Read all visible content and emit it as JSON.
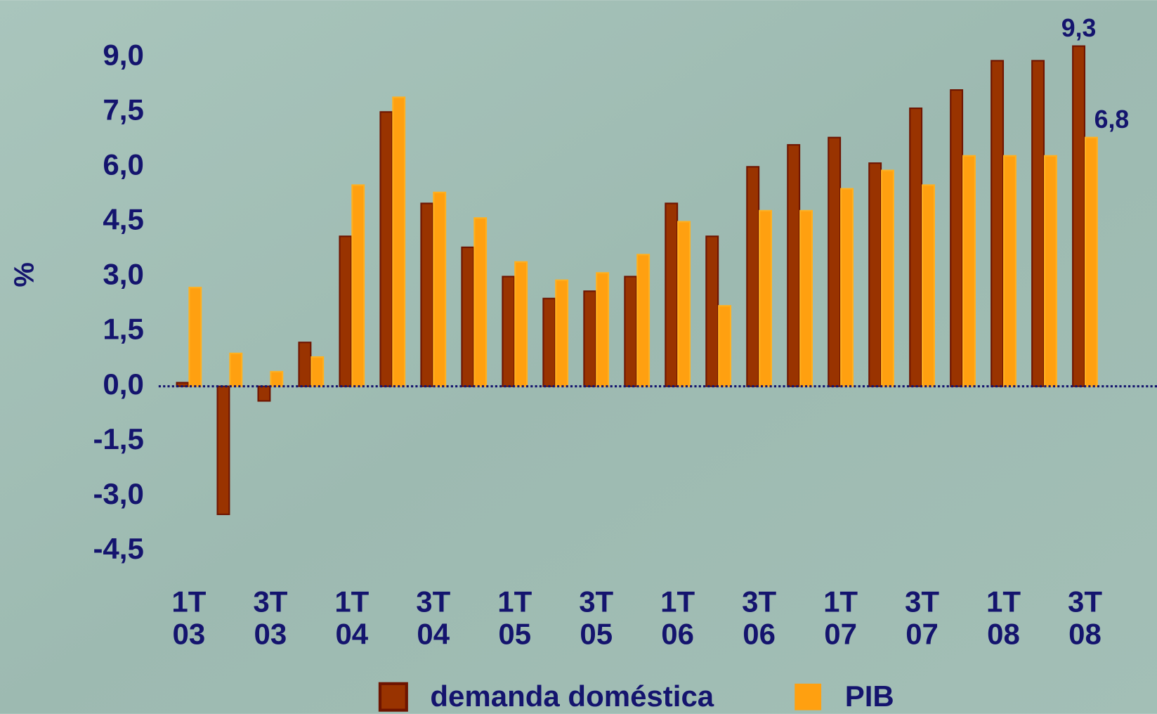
{
  "chart_data": {
    "type": "bar",
    "y_label": "%",
    "categories": [
      "1T 03",
      null,
      "3T 03",
      null,
      "1T 04",
      null,
      "3T 04",
      null,
      "1T 05",
      null,
      "3T 05",
      null,
      "1T 06",
      null,
      "3T 06",
      null,
      "1T 07",
      null,
      "3T 07",
      null,
      "1T 08",
      null,
      "3T 08"
    ],
    "series": [
      {
        "name": "demanda doméstica",
        "color": "#993300",
        "values": [
          0.1,
          -3.5,
          -0.4,
          1.2,
          4.1,
          7.5,
          5.0,
          3.8,
          3.0,
          2.4,
          2.6,
          3.0,
          5.0,
          4.1,
          6.0,
          6.6,
          6.8,
          6.1,
          7.6,
          8.1,
          8.9,
          8.9,
          9.3
        ],
        "value_labels": [
          null,
          null,
          null,
          null,
          null,
          null,
          null,
          null,
          null,
          null,
          null,
          null,
          null,
          null,
          null,
          null,
          null,
          null,
          null,
          null,
          null,
          null,
          "9,3"
        ]
      },
      {
        "name": "PIB",
        "color": "#ffa010",
        "values": [
          2.7,
          0.9,
          0.4,
          0.8,
          5.5,
          7.9,
          5.3,
          4.6,
          3.4,
          2.9,
          3.1,
          3.6,
          4.5,
          2.2,
          4.8,
          4.8,
          5.4,
          5.9,
          5.5,
          6.3,
          6.3,
          6.3,
          6.8
        ],
        "value_labels": [
          null,
          null,
          null,
          null,
          null,
          null,
          null,
          null,
          null,
          null,
          null,
          null,
          null,
          null,
          null,
          null,
          null,
          null,
          null,
          null,
          null,
          null,
          "6,8"
        ]
      }
    ],
    "ylim": [
      -5,
      9.75
    ],
    "yticks": [
      {
        "value": -4.5,
        "label": "-4,5"
      },
      {
        "value": -3,
        "label": "-3,0"
      },
      {
        "value": -1.5,
        "label": "-1,5"
      },
      {
        "value": 0,
        "label": "0,0"
      },
      {
        "value": 1.5,
        "label": "1,5"
      },
      {
        "value": 3,
        "label": "3,0"
      },
      {
        "value": 4.5,
        "label": "4,5"
      },
      {
        "value": 6,
        "label": "6,0"
      },
      {
        "value": 7.5,
        "label": "7,5"
      },
      {
        "value": 9,
        "label": "9,0"
      }
    ],
    "legend": "bottom"
  }
}
